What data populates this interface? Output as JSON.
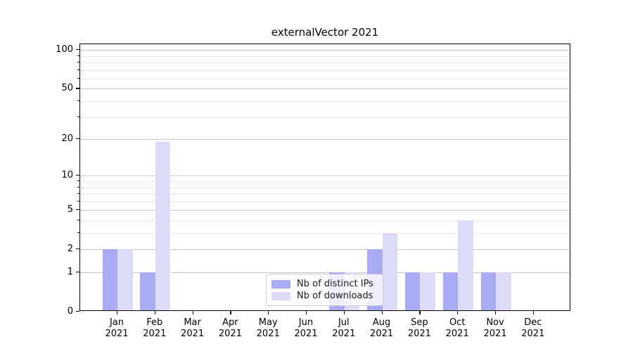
{
  "chart_data": {
    "type": "bar",
    "title": "externalVector 2021",
    "categories": [
      "Jan",
      "Feb",
      "Mar",
      "Apr",
      "May",
      "Jun",
      "Jul",
      "Aug",
      "Sep",
      "Oct",
      "Nov",
      "Dec"
    ],
    "x_tick_second_line": "2021",
    "series": [
      {
        "name": "Nb of distinct IPs",
        "color": "#aaaaf5",
        "values": [
          2,
          1,
          0,
          0,
          0,
          0,
          1,
          2,
          1,
          1,
          1,
          0
        ]
      },
      {
        "name": "Nb of downloads",
        "color": "#dcdcf8",
        "values": [
          2,
          19,
          0,
          0,
          0,
          0,
          1,
          3,
          1,
          4,
          1,
          0
        ]
      }
    ],
    "y_scale": "log10(1+x)",
    "y_major_ticks": [
      0,
      1,
      2,
      5,
      10,
      20,
      50,
      100
    ],
    "y_minor_ticks": [
      3,
      4,
      6,
      7,
      8,
      9,
      30,
      40,
      60,
      70,
      80,
      90
    ],
    "ylim": [
      0,
      111
    ],
    "grid": {
      "axis": "y",
      "major_color": "#c8c8c8",
      "minor_color": "#e7e7e7"
    },
    "legend": {
      "position": "lower center",
      "background": "#ffffff",
      "border_color": "#cccccc"
    },
    "frame_color": "#000000",
    "background_color": "#ffffff"
  }
}
